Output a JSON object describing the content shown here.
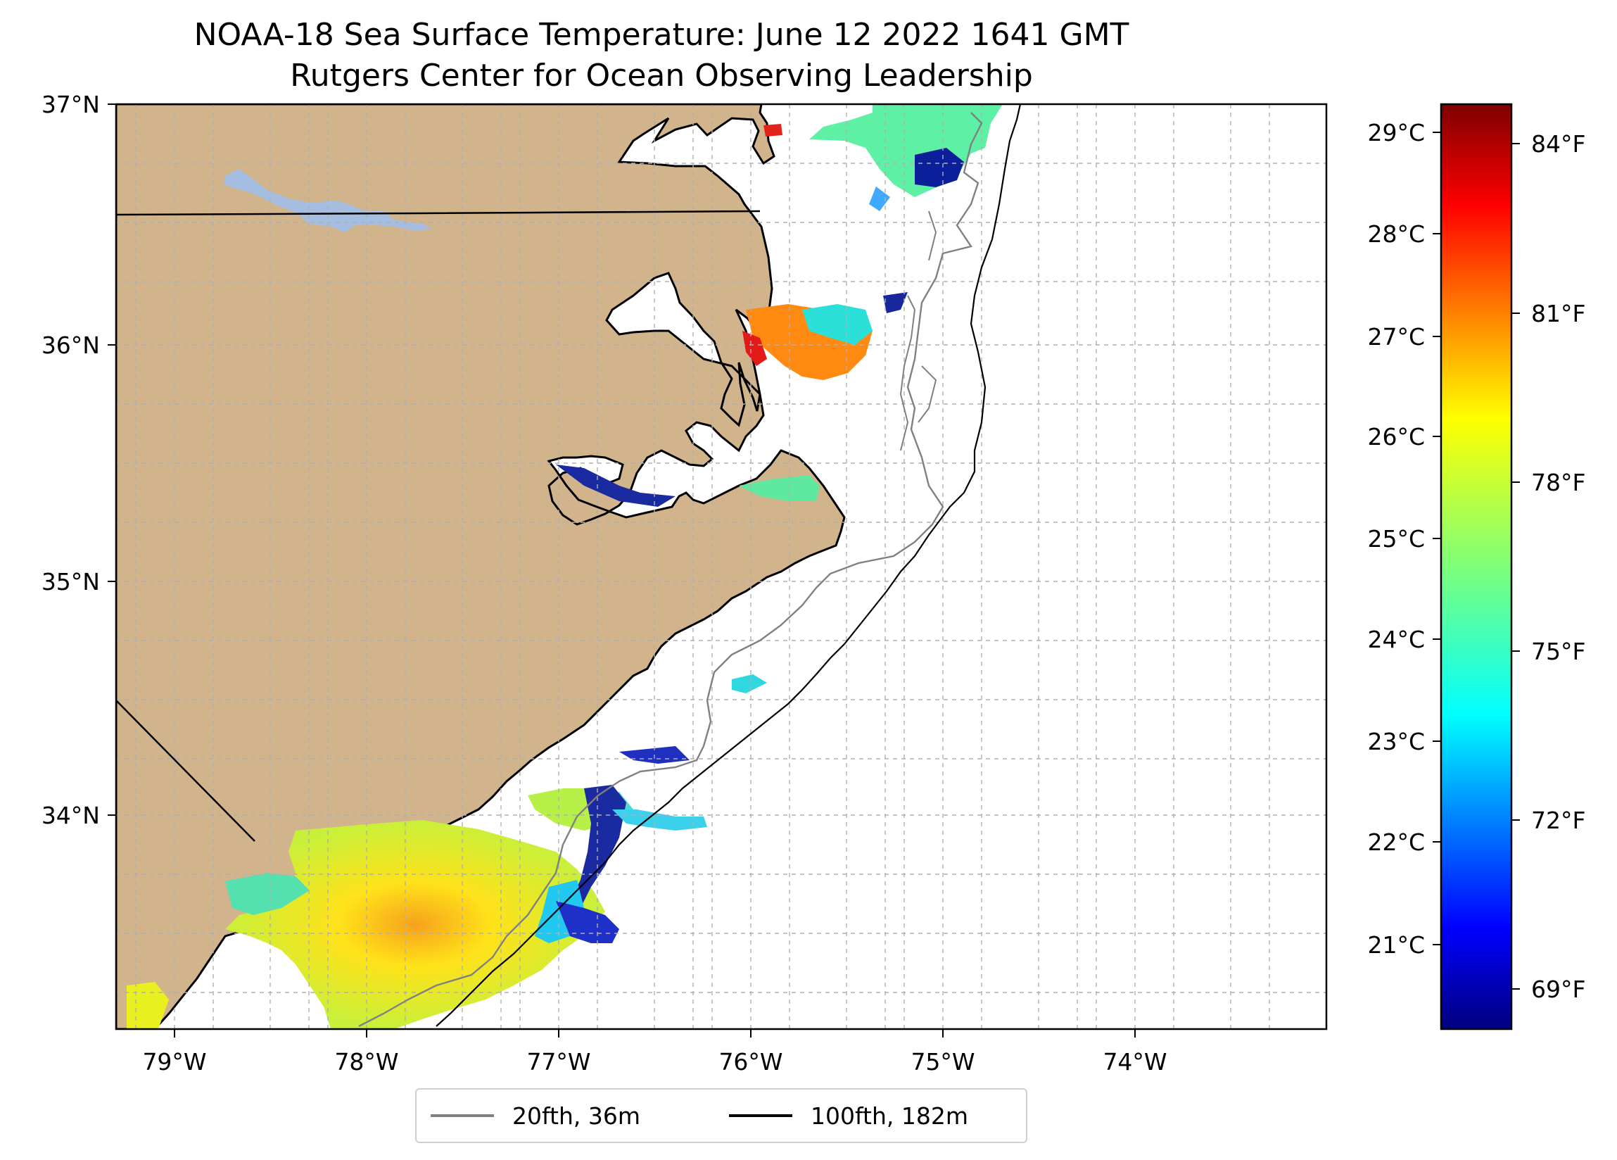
{
  "title": {
    "line1": "NOAA-18 Sea Surface Temperature: June 12 2022 1641 GMT",
    "line2": "Rutgers Center for Ocean Observing Leadership"
  },
  "map": {
    "lon_range": [
      -79.3,
      -73.0
    ],
    "lat_range": [
      33.1,
      37.0
    ],
    "x_ticks": [
      "79°W",
      "78°W",
      "77°W",
      "76°W",
      "75°W",
      "74°W"
    ],
    "y_ticks": [
      "37°N",
      "36°N",
      "35°N",
      "34°N"
    ],
    "land_color": "#d2b48c",
    "lake_color": "#a4bde0",
    "grid": true
  },
  "colorbar": {
    "celsius_ticks": [
      "29°C",
      "28°C",
      "27°C",
      "26°C",
      "25°C",
      "24°C",
      "23°C",
      "22°C",
      "21°C"
    ],
    "fahrenheit_ticks": [
      "84°F",
      "81°F",
      "78°F",
      "75°F",
      "72°F",
      "69°F"
    ],
    "colormap": "jet",
    "range_c": [
      20.0,
      29.3
    ]
  },
  "legend": {
    "items": [
      {
        "label": "20fth, 36m",
        "color": "#808080"
      },
      {
        "label": "100fth, 182m",
        "color": "#000000"
      }
    ]
  }
}
